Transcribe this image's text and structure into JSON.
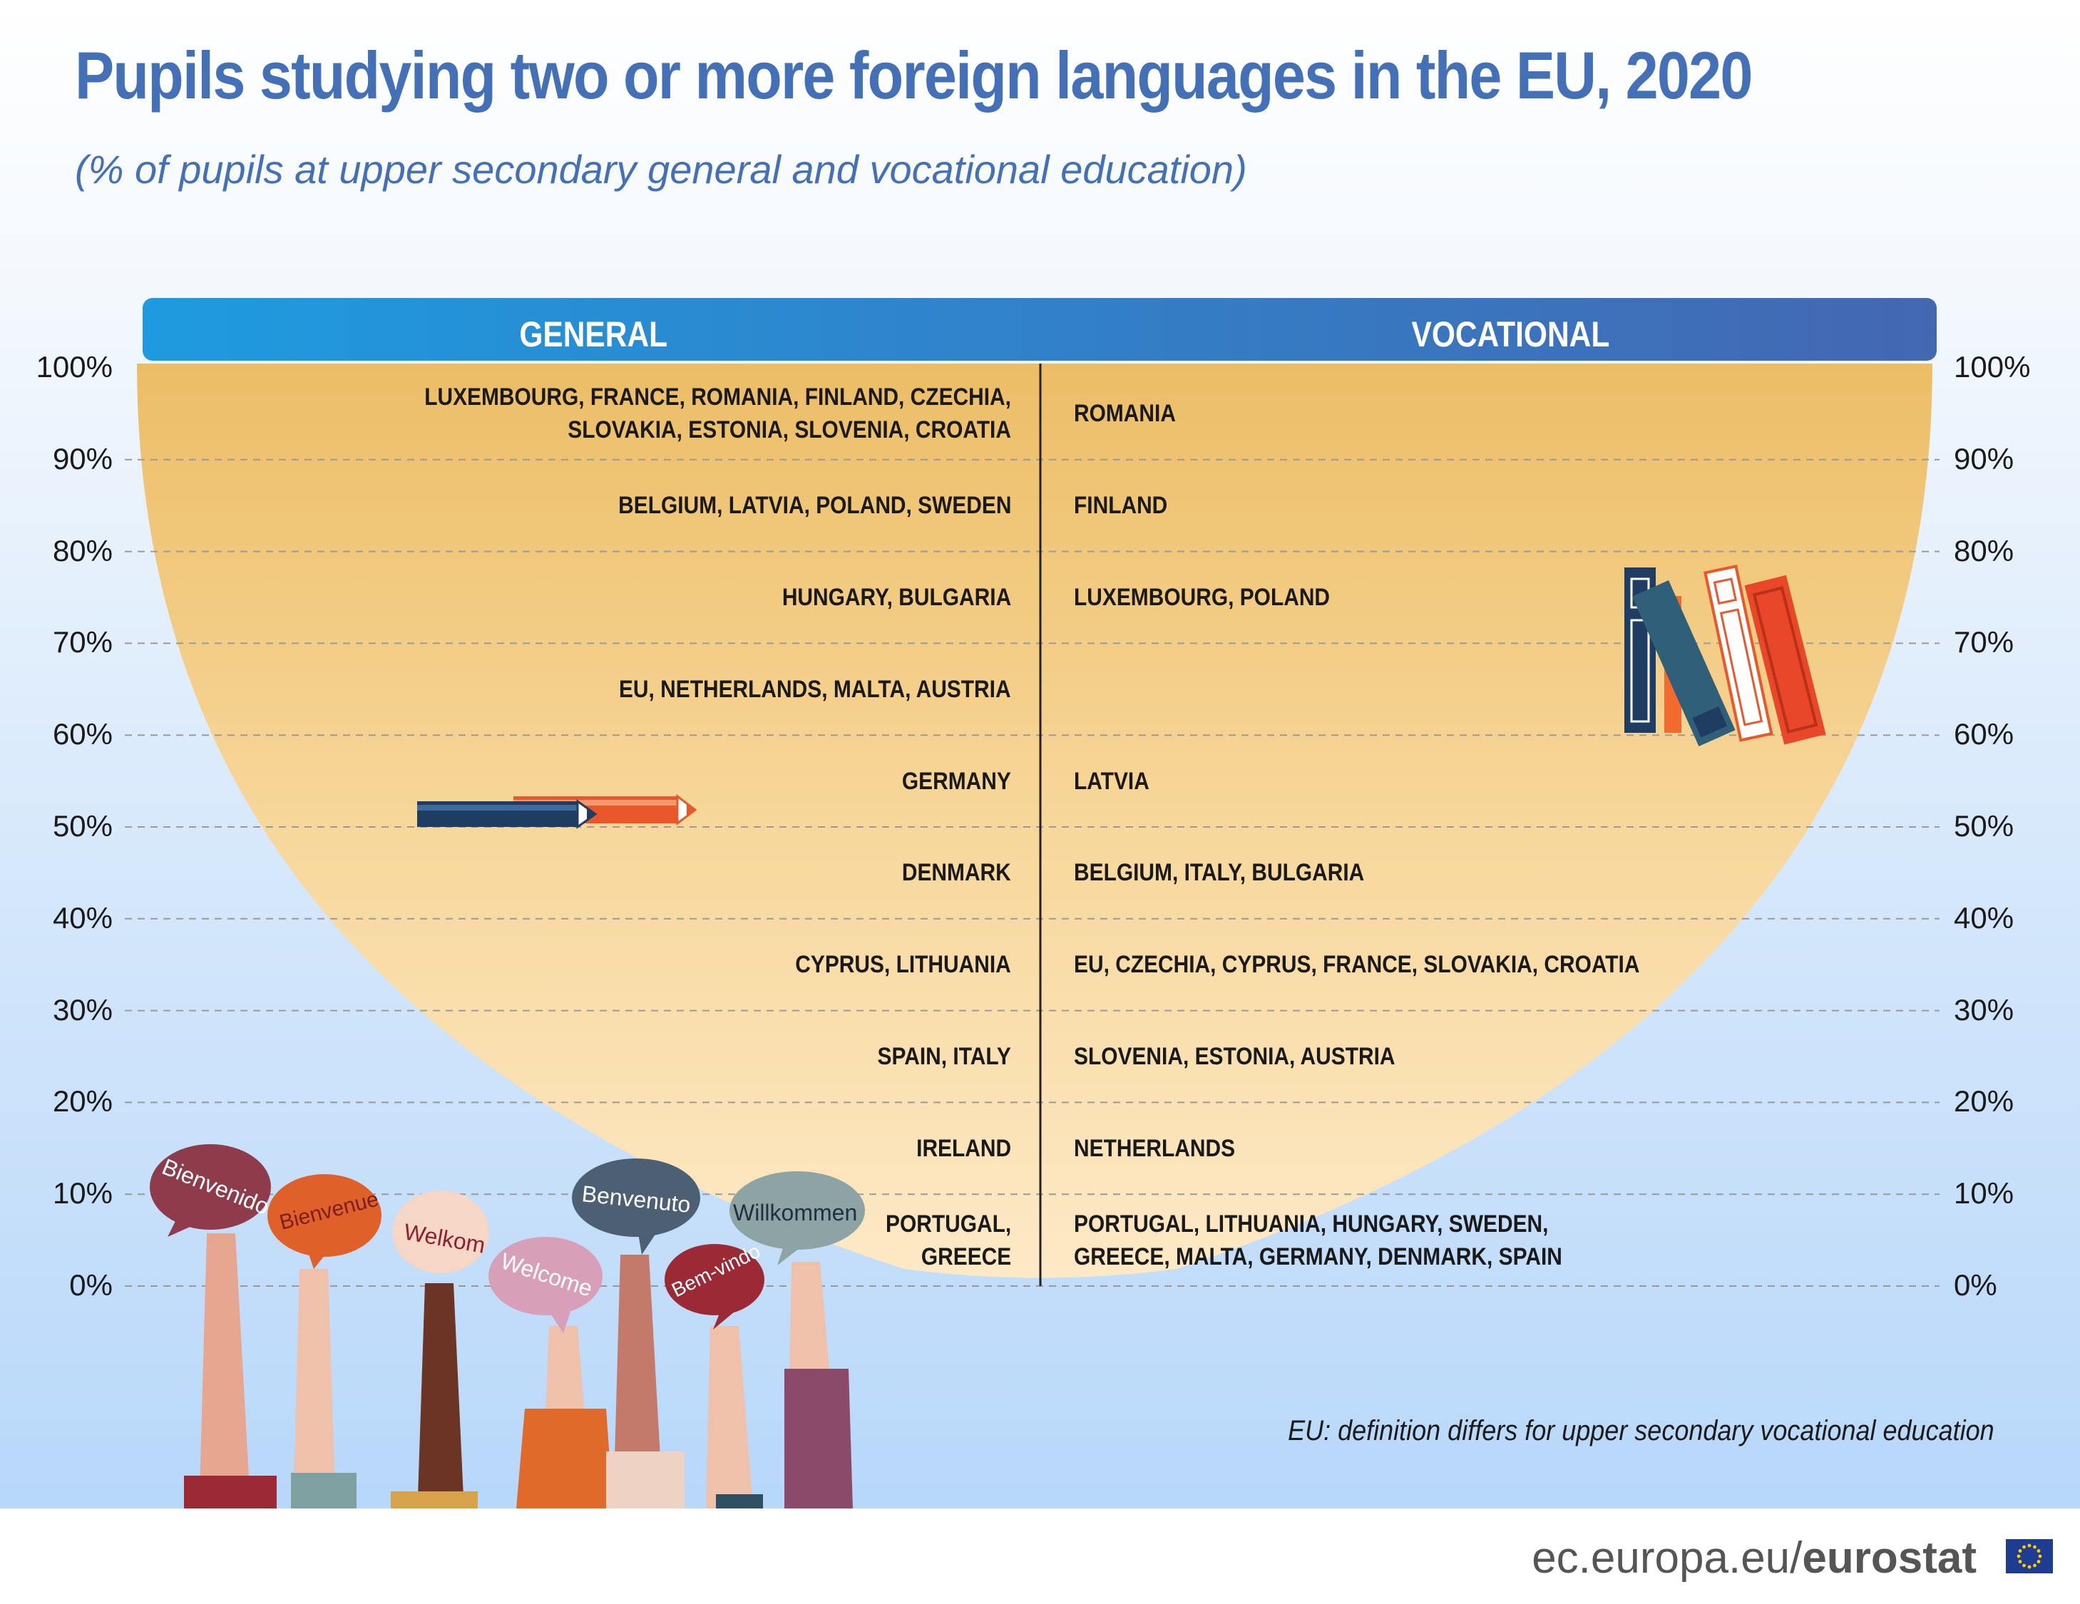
{
  "chart_data": {
    "type": "table",
    "title": "Pupils studying two or more foreign languages in the EU, 2020",
    "subtitle": "(% of pupils at upper secondary general and vocational education)",
    "columns": [
      "GENERAL",
      "VOCATIONAL"
    ],
    "axis_ticks": [
      "100%",
      "90%",
      "80%",
      "70%",
      "60%",
      "50%",
      "40%",
      "30%",
      "20%",
      "10%",
      "0%"
    ],
    "rows": [
      {
        "value": 100,
        "general": [
          "LUXEMBOURG, FRANCE, ROMANIA, FINLAND, CZECHIA,",
          "SLOVAKIA, ESTONIA, SLOVENIA, CROATIA"
        ],
        "vocational": [
          "ROMANIA"
        ]
      },
      {
        "value": 90,
        "general": [
          "BELGIUM, LATVIA, POLAND, SWEDEN"
        ],
        "vocational": [
          "FINLAND"
        ]
      },
      {
        "value": 80,
        "general": [
          "HUNGARY, BULGARIA"
        ],
        "vocational": [
          "LUXEMBOURG, POLAND"
        ]
      },
      {
        "value": 70,
        "general": [
          "EU, NETHERLANDS, MALTA, AUSTRIA"
        ],
        "vocational": []
      },
      {
        "value": 60,
        "general": [
          "GERMANY"
        ],
        "vocational": [
          "LATVIA"
        ]
      },
      {
        "value": 50,
        "general": [
          "DENMARK"
        ],
        "vocational": [
          "BELGIUM, ITALY, BULGARIA"
        ]
      },
      {
        "value": 40,
        "general": [
          "CYPRUS, LITHUANIA"
        ],
        "vocational": [
          "EU, CZECHIA, CYPRUS, FRANCE, SLOVAKIA, CROATIA"
        ]
      },
      {
        "value": 30,
        "general": [
          "SPAIN, ITALY"
        ],
        "vocational": [
          "SLOVENIA, ESTONIA, AUSTRIA"
        ]
      },
      {
        "value": 20,
        "general": [
          "IRELAND"
        ],
        "vocational": [
          "NETHERLANDS"
        ]
      },
      {
        "value": 10,
        "general": [
          "PORTUGAL,",
          "GREECE"
        ],
        "vocational": [
          "PORTUGAL, LITHUANIA, HUNGARY, SWEDEN,",
          "GREECE, MALTA, GERMANY, DENMARK, SPAIN"
        ]
      }
    ],
    "ylim": [
      0,
      100
    ],
    "grid": true
  },
  "footnote": "EU: definition differs for upper secondary vocational education",
  "footer": {
    "domain": "ec.europa.eu/",
    "brand": "eurostat"
  },
  "greetings": [
    "Bienvenido",
    "Bienvenue",
    "Welkom",
    "Welcome",
    "Benvenuto",
    "Bem-vindo",
    "Willkommen"
  ],
  "colors": {
    "title": "#4470b8",
    "bowl_top": "#ecbd66",
    "bowl_bottom": "#fde9c6",
    "header_start": "#1e9be0",
    "header_end": "#4467b2"
  }
}
